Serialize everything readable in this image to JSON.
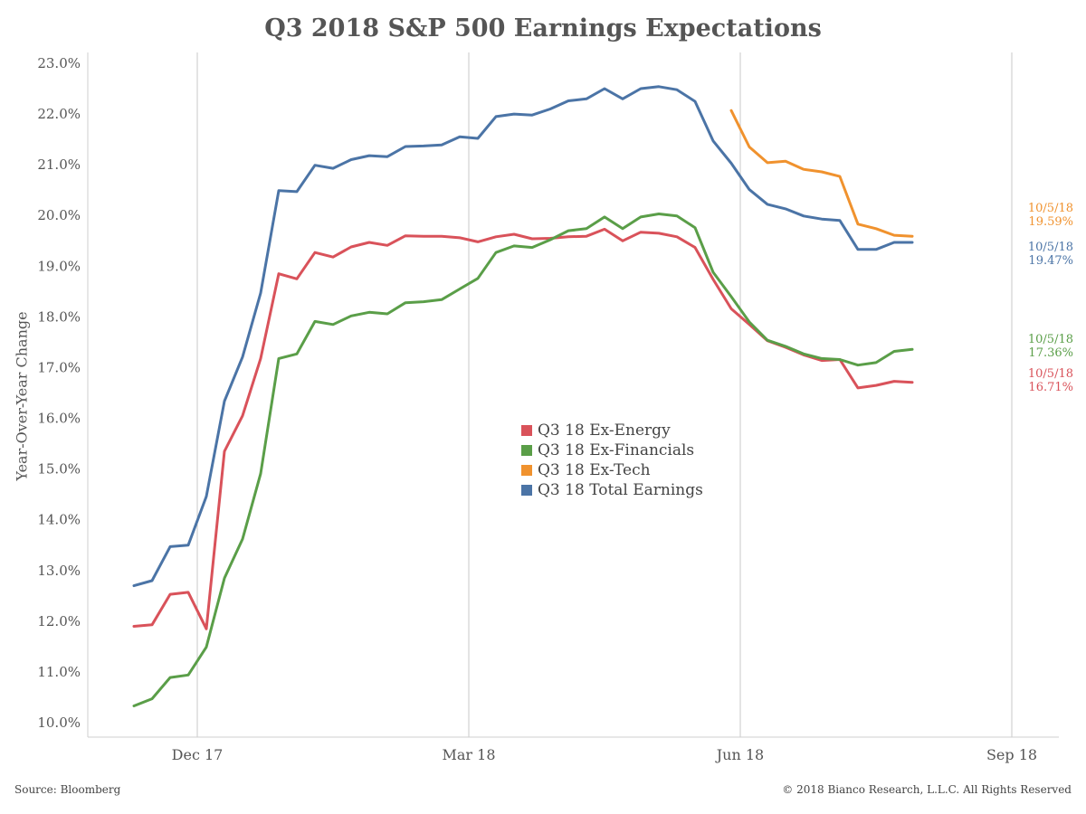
{
  "title": "Q3 2018 S&P 500 Earnings Expectations",
  "source": "Source: Bloomberg",
  "copyright": "© 2018 Bianco Research, L.L.C. All Rights Reserved",
  "chart_data": {
    "type": "line",
    "ylabel": "Year-Over-Year Change",
    "ylim": [
      10.0,
      23.0
    ],
    "y_ticks": [
      "10.0%",
      "11.0%",
      "12.0%",
      "13.0%",
      "14.0%",
      "15.0%",
      "16.0%",
      "17.0%",
      "18.0%",
      "19.0%",
      "20.0%",
      "21.0%",
      "22.0%",
      "23.0%"
    ],
    "x_ticks": [
      "Dec 17",
      "Mar 18",
      "Jun 18",
      "Sep 18"
    ],
    "x_tick_index": [
      3.5,
      18.5,
      33.5,
      48.5
    ],
    "xlim": [
      -1,
      50
    ],
    "grid": "vertical",
    "legend_position": "center",
    "series": [
      {
        "name": "Q3 18 Ex-Energy",
        "color": "#d9525a",
        "end_date": "10/5/18",
        "end_value": "16.71%",
        "values": [
          11.9,
          11.93,
          12.53,
          12.57,
          11.85,
          15.35,
          16.05,
          17.18,
          18.85,
          18.75,
          19.27,
          19.18,
          19.38,
          19.47,
          19.41,
          19.6,
          19.59,
          19.59,
          19.56,
          19.48,
          19.58,
          19.63,
          19.54,
          19.55,
          19.58,
          19.59,
          19.73,
          19.5,
          19.67,
          19.65,
          19.58,
          19.37,
          18.74,
          18.16,
          17.85,
          17.53,
          17.4,
          17.25,
          17.14,
          17.16,
          16.6,
          16.65,
          16.73,
          16.71
        ]
      },
      {
        "name": "Q3 18 Ex-Financials",
        "color": "#5a9e48",
        "end_date": "10/5/18",
        "end_value": "17.36%",
        "values": [
          10.33,
          10.47,
          10.89,
          10.94,
          11.49,
          12.85,
          13.62,
          14.91,
          17.18,
          17.27,
          17.91,
          17.85,
          18.02,
          18.09,
          18.06,
          18.28,
          18.3,
          18.34,
          18.55,
          18.76,
          19.27,
          19.4,
          19.37,
          19.52,
          19.7,
          19.74,
          19.97,
          19.74,
          19.97,
          20.03,
          19.99,
          19.76,
          18.88,
          18.4,
          17.9,
          17.54,
          17.42,
          17.27,
          17.18,
          17.16,
          17.05,
          17.1,
          17.32,
          17.36
        ]
      },
      {
        "name": "Q3 18 Ex-Tech",
        "color": "#f0922e",
        "end_date": "10/5/18",
        "end_value": "19.59%",
        "values": [
          null,
          null,
          null,
          null,
          null,
          null,
          null,
          null,
          null,
          null,
          null,
          null,
          null,
          null,
          null,
          null,
          null,
          null,
          null,
          null,
          null,
          null,
          null,
          null,
          null,
          null,
          null,
          null,
          null,
          null,
          null,
          null,
          null,
          22.07,
          21.35,
          21.04,
          21.07,
          20.91,
          20.86,
          20.77,
          19.83,
          19.74,
          19.61,
          19.59
        ]
      },
      {
        "name": "Q3 18 Total Earnings",
        "color": "#4b74a6",
        "end_date": "10/5/18",
        "end_value": "19.47%",
        "values": [
          12.7,
          12.8,
          13.47,
          13.5,
          14.46,
          16.34,
          17.21,
          18.47,
          20.49,
          20.47,
          20.99,
          20.93,
          21.1,
          21.18,
          21.16,
          21.36,
          21.37,
          21.39,
          21.55,
          21.52,
          21.95,
          22.0,
          21.98,
          22.1,
          22.26,
          22.3,
          22.5,
          22.3,
          22.5,
          22.54,
          22.48,
          22.25,
          21.47,
          21.03,
          20.51,
          20.22,
          20.13,
          19.99,
          19.93,
          19.9,
          19.33,
          19.33,
          19.47,
          19.47
        ]
      }
    ]
  }
}
